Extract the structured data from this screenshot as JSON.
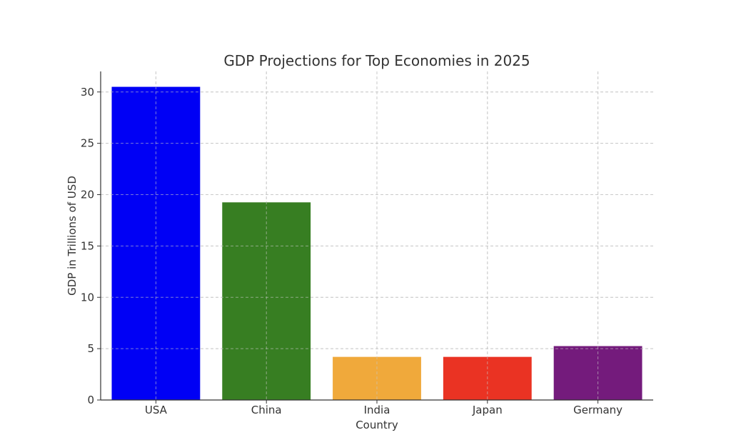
{
  "chart_data": {
    "type": "bar",
    "title": "GDP Projections for Top Economies in 2025",
    "xlabel": "Country",
    "ylabel": "GDP in Trillions of USD",
    "categories": [
      "USA",
      "China",
      "India",
      "Japan",
      "Germany"
    ],
    "values": [
      30.5,
      19.25,
      4.2,
      4.2,
      5.25
    ],
    "colors": [
      "#0000f5",
      "#377e22",
      "#f0a93b",
      "#ea3323",
      "#741b7c"
    ],
    "ylim": [
      0,
      32
    ],
    "yticks": [
      0,
      5,
      10,
      15,
      20,
      25,
      30
    ],
    "grid": true,
    "legend": "none"
  }
}
